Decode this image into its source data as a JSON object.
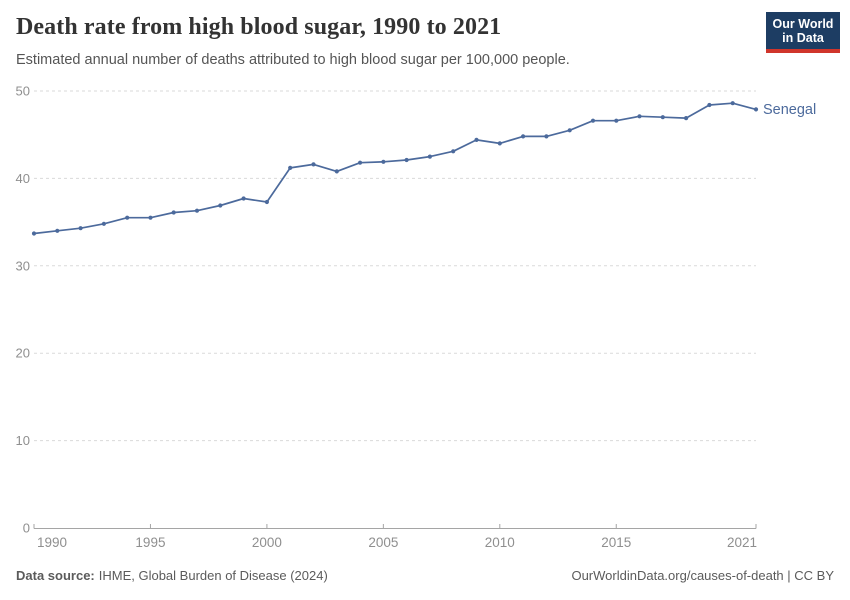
{
  "header": {
    "title": "Death rate from high blood sugar, 1990 to 2021",
    "subtitle": "Estimated annual number of deaths attributed to high blood sugar per 100,000 people."
  },
  "logo": {
    "line1": "Our World",
    "line2": "in Data",
    "bg_color": "#1d3d63",
    "bar_color": "#d0352b"
  },
  "footer": {
    "source_label": "Data source:",
    "source_value": "IHME, Global Burden of Disease (2024)",
    "credit": "OurWorldinData.org/causes-of-death | CC BY"
  },
  "chart_data": {
    "type": "line",
    "title": "Death rate from high blood sugar, 1990 to 2021",
    "xlabel": "",
    "ylabel": "",
    "xlim": [
      1990,
      2021
    ],
    "ylim": [
      0,
      50
    ],
    "xticks": [
      1990,
      1995,
      2000,
      2005,
      2010,
      2015,
      2021
    ],
    "yticks": [
      0,
      10,
      20,
      30,
      40,
      50
    ],
    "grid": "horizontal-dashed",
    "legend_position": "end-of-line-label",
    "x": [
      1990,
      1991,
      1992,
      1993,
      1994,
      1995,
      1996,
      1997,
      1998,
      1999,
      2000,
      2001,
      2002,
      2003,
      2004,
      2005,
      2006,
      2007,
      2008,
      2009,
      2010,
      2011,
      2012,
      2013,
      2014,
      2015,
      2016,
      2017,
      2018,
      2019,
      2020,
      2021
    ],
    "series": [
      {
        "name": "Senegal",
        "color": "#4C6A9C",
        "values": [
          33.7,
          34.0,
          34.3,
          34.8,
          35.5,
          35.5,
          36.1,
          36.3,
          36.9,
          37.7,
          37.3,
          41.2,
          41.6,
          40.8,
          41.8,
          41.9,
          42.1,
          42.5,
          43.1,
          44.4,
          44.0,
          44.8,
          44.8,
          45.5,
          46.6,
          46.6,
          47.1,
          47.0,
          46.9,
          48.4,
          48.6,
          47.9
        ]
      }
    ],
    "style": {
      "grid_color": "#dadada",
      "axis_color": "#a5a5a5",
      "tick_label_color": "#8f8f8f"
    }
  }
}
